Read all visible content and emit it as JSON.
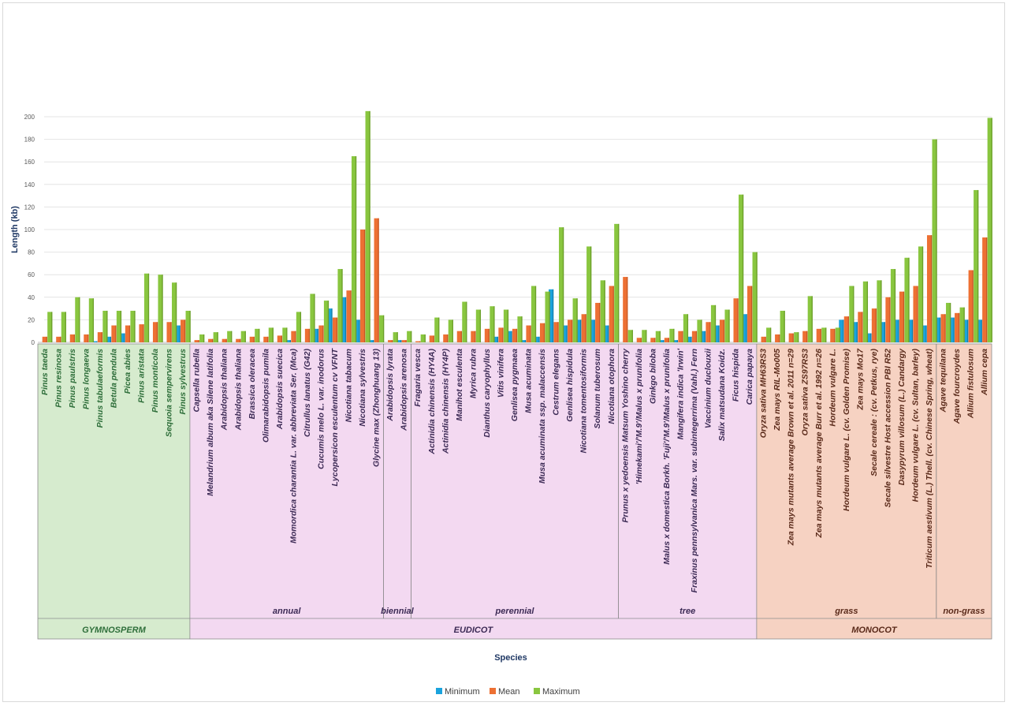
{
  "chart_data": {
    "type": "bar",
    "xlabel": "Species",
    "ylabel": "Length (kb)",
    "ylim": [
      0,
      200
    ],
    "yticks": [
      0,
      20,
      40,
      60,
      80,
      100,
      120,
      140,
      160,
      180,
      200
    ],
    "grid": true,
    "legend_position": "bottom",
    "categories": [
      "Pinus taeda",
      "Pinus resinosa",
      "Pinus paulstris",
      "Pinus longaeva",
      "Pinus tabulaeformis",
      "Betula pendula",
      "Picea abies",
      "Pinus aristata",
      "Pinus monticola",
      "Sequoia sempervirens",
      "Pinus sylvestrus",
      "Capsella rubella",
      "Melandrium album aka Silene latifolia",
      "Arabidopsis thaliana",
      "Arabidopsis thaliana",
      "Brassica oleracea",
      "Olimarabidopsis pumila",
      "Arabidopsis suecica",
      "Momordica charantia L. var. abbreviata Ser. (Mca)",
      "Citrullus lanatus (G42)",
      "Cucumis melo L. var. inodorus",
      "Lycopersicon esculentum cv VFNT",
      "Nicotiana tabacum",
      "Nicotiana sylvestris",
      "Glycine max (Zhonghuang 13)",
      "Arabidopsis lyrata",
      "Arabidopsis arenosa",
      "Fragaria vesca",
      "Actinidia chinensis (HY4A)",
      "Actinidia chinensis (HY4P)",
      "Manihot esculenta",
      "Myrica rubra",
      "Dianthus caryophyllus",
      "Vitis vinifera",
      "Genlisea pygmaea",
      "Musa acuminata",
      "Musa acuminata ssp. malaccensis",
      "Cestrum elegans",
      "Genlisea hispidula",
      "Nicotiana tomentosiformis",
      "Solanum tuberosum",
      "Nicotiana otophora",
      "Prunus x yedoensis Matsum Yoshino cherry",
      "'Himekami'/'M.9'/Malus x prunifolia",
      "Ginkgo biloba",
      "Malus x domestica Borkh. 'Fuji'/'M.9'/Malus x prunifolia",
      "Mangifera indica 'Irwin'",
      "Fraxinus pennsylvanica Mars. var. subintegerrima (Vahl.) Fern",
      "Vaccinium duclouxii",
      "Salix matsudana Koidz.",
      "Ficus hispida",
      "Carica papaya",
      "Oryza sativa MH63RS3",
      "Zea mays RIL-Mo005",
      "Zea mays mutants average Brown et al. 2011 n=29",
      "Oryza sativa ZS97RS3",
      "Zea mays mutants average Burr et al. 1992 n=26",
      "Hordeum vulgare L.",
      "Hordeum vulgare L. (cv. Golden Promise)",
      "Zea mays Mo17",
      "Secale cereale : (cv. Petkus, rye)",
      "Secale silvestre Host accession PBI R52",
      "Dasypyrum villosum (L.) Candargy",
      "Hordeum vulgare L. (cv. Sultan, barley)",
      "Triticum aestivum (L.) Thell. (cv. Chinese Spring, wheat)",
      "Agave tequilana",
      "Agave fourcroydes",
      "Allium fistulosum",
      "Allium cepa"
    ],
    "series": [
      {
        "name": "Minimum",
        "color": "#1aa3dd",
        "values": [
          0,
          0,
          0,
          0,
          1,
          5,
          8,
          0,
          0,
          0,
          15,
          0,
          0,
          0,
          0,
          0,
          0,
          0,
          2,
          0,
          12,
          30,
          40,
          20,
          2,
          0,
          2,
          0,
          0,
          0,
          0,
          0,
          0,
          5,
          10,
          2,
          5,
          47,
          15,
          20,
          20,
          15,
          0,
          0,
          0,
          2,
          2,
          5,
          10,
          15,
          0,
          25,
          0,
          0,
          0,
          0,
          0,
          0,
          20,
          18,
          8,
          18,
          20,
          20,
          15,
          22,
          22,
          20,
          20
        ]
      },
      {
        "name": "Mean",
        "color": "#ed7033",
        "values": [
          5,
          5,
          7,
          7,
          9,
          15,
          15,
          16,
          18,
          18,
          20,
          2,
          3,
          3,
          3,
          5,
          5,
          6,
          10,
          12,
          15,
          22,
          46,
          100,
          110,
          2,
          2,
          1,
          6,
          7,
          10,
          10,
          12,
          13,
          12,
          15,
          17,
          18,
          20,
          25,
          35,
          50,
          58,
          4,
          4,
          4,
          10,
          10,
          18,
          20,
          39,
          50,
          5,
          7,
          8,
          10,
          12,
          12,
          23,
          27,
          30,
          40,
          45,
          50,
          95,
          25,
          26,
          64,
          93
        ]
      },
      {
        "name": "Maximum",
        "color": "#89c63f",
        "values": [
          27,
          27,
          40,
          39,
          28,
          28,
          28,
          61,
          60,
          53,
          28,
          7,
          9,
          10,
          10,
          12,
          13,
          13,
          27,
          43,
          37,
          65,
          165,
          205,
          24,
          9,
          10,
          7,
          22,
          20,
          36,
          29,
          32,
          29,
          23,
          50,
          45,
          102,
          39,
          85,
          55,
          105,
          11,
          11,
          10,
          12,
          25,
          20,
          33,
          29,
          131,
          80,
          13,
          28,
          9,
          41,
          13,
          13,
          50,
          54,
          55,
          65,
          75,
          85,
          180,
          35,
          31,
          135,
          199
        ]
      }
    ],
    "groups": [
      {
        "label": "GYMNOSPERM",
        "subgroups": [
          {
            "label": "",
            "count": 11
          }
        ]
      },
      {
        "label": "EUDICOT",
        "subgroups": [
          {
            "label": "annual",
            "count": 14
          },
          {
            "label": "biennial",
            "count": 2
          },
          {
            "label": "perennial",
            "count": 15
          },
          {
            "label": "tree",
            "count": 10
          }
        ]
      },
      {
        "label": "MONOCOT",
        "subgroups": [
          {
            "label": "grass",
            "count": 13
          },
          {
            "label": "non-grass",
            "count": 4
          }
        ]
      }
    ],
    "group_colors": {
      "GYMNOSPERM": {
        "fill": "#d6ebce",
        "text": "#2e6e3a"
      },
      "EUDICOT": {
        "fill": "#f3d9f1",
        "text": "#3c2a55"
      },
      "MONOCOT": {
        "fill": "#f6d2c2",
        "text": "#5a2a1a"
      }
    }
  },
  "legend": [
    "Minimum",
    "Mean",
    "Maximum"
  ]
}
